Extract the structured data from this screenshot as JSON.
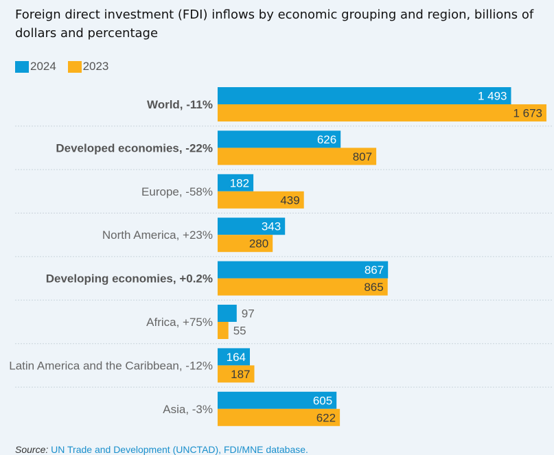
{
  "title": "Foreign direct investment (FDI) inflows by economic grouping and region, billions of dollars and percentage",
  "legend": [
    {
      "label": "2024",
      "color": "#0a9bd8"
    },
    {
      "label": "2023",
      "color": "#fbb01c"
    }
  ],
  "source": {
    "prefix": "Source:",
    "text": "UN Trade and Development (UNCTAD), FDI/MNE database."
  },
  "chart_data": {
    "type": "bar",
    "orientation": "horizontal",
    "categories": [
      "World, -11%",
      "Developed economies, -22%",
      "Europe, -58%",
      "North America, +23%",
      "Developing economies, +0.2%",
      "Africa, +75%",
      "Latin America and the Caribbean, -12%",
      "Asia, -3%"
    ],
    "category_bold": [
      true,
      true,
      false,
      false,
      true,
      false,
      false,
      false
    ],
    "series": [
      {
        "name": "2024",
        "color": "#0a9bd8",
        "values": [
          1493,
          626,
          182,
          343,
          867,
          97,
          164,
          605
        ],
        "labels": [
          "1 493",
          "626",
          "182",
          "343",
          "867",
          "97",
          "164",
          "605"
        ]
      },
      {
        "name": "2023",
        "color": "#fbb01c",
        "values": [
          1673,
          807,
          439,
          280,
          865,
          55,
          187,
          622
        ],
        "labels": [
          "1 673",
          "807",
          "439",
          "280",
          "865",
          "55",
          "187",
          "622"
        ]
      }
    ],
    "xlim": [
      0,
      1673
    ],
    "grid": false,
    "row_separators": true,
    "legend_position": "top-left"
  }
}
